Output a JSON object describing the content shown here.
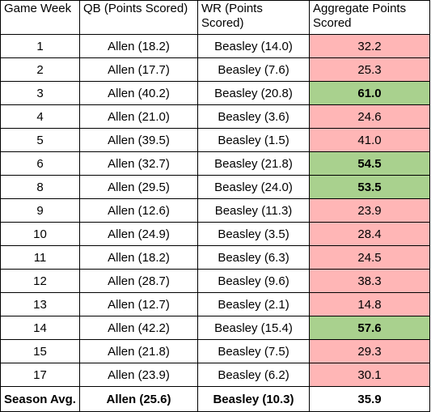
{
  "headers": [
    "Game Week",
    "QB (Points Scored)",
    "WR (Points Scored)",
    "Aggregate Points Scored"
  ],
  "rows": [
    {
      "week": "1",
      "qb": "Allen (18.2)",
      "wr": "Beasley (14.0)",
      "agg": "32.2",
      "status": "low"
    },
    {
      "week": "2",
      "qb": "Allen (17.7)",
      "wr": "Beasley (7.6)",
      "agg": "25.3",
      "status": "low"
    },
    {
      "week": "3",
      "qb": "Allen (40.2)",
      "wr": "Beasley (20.8)",
      "agg": "61.0",
      "status": "high"
    },
    {
      "week": "4",
      "qb": "Allen (21.0)",
      "wr": "Beasley (3.6)",
      "agg": "24.6",
      "status": "low"
    },
    {
      "week": "5",
      "qb": "Allen (39.5)",
      "wr": "Beasley (1.5)",
      "agg": "41.0",
      "status": "low"
    },
    {
      "week": "6",
      "qb": "Allen (32.7)",
      "wr": "Beasley (21.8)",
      "agg": "54.5",
      "status": "high"
    },
    {
      "week": "8",
      "qb": "Allen (29.5)",
      "wr": "Beasley (24.0)",
      "agg": "53.5",
      "status": "high"
    },
    {
      "week": "9",
      "qb": "Allen (12.6)",
      "wr": "Beasley (11.3)",
      "agg": "23.9",
      "status": "low"
    },
    {
      "week": "10",
      "qb": "Allen (24.9)",
      "wr": "Beasley (3.5)",
      "agg": "28.4",
      "status": "low"
    },
    {
      "week": "11",
      "qb": "Allen (18.2)",
      "wr": "Beasley (6.3)",
      "agg": "24.5",
      "status": "low"
    },
    {
      "week": "12",
      "qb": "Allen (28.7)",
      "wr": "Beasley (9.6)",
      "agg": "38.3",
      "status": "low"
    },
    {
      "week": "13",
      "qb": "Allen (12.7)",
      "wr": "Beasley (2.1)",
      "agg": "14.8",
      "status": "low"
    },
    {
      "week": "14",
      "qb": "Allen (42.2)",
      "wr": "Beasley (15.4)",
      "agg": "57.6",
      "status": "high"
    },
    {
      "week": "15",
      "qb": "Allen (21.8)",
      "wr": "Beasley (7.5)",
      "agg": "29.3",
      "status": "low"
    },
    {
      "week": "17",
      "qb": "Allen (23.9)",
      "wr": "Beasley (6.2)",
      "agg": "30.1",
      "status": "low"
    }
  ],
  "summary": {
    "week": "Season Avg.",
    "qb": "Allen (25.6)",
    "wr": "Beasley (10.3)",
    "agg": "35.9"
  },
  "colors": {
    "low": "#ffb6b6",
    "high": "#a9d18e"
  }
}
